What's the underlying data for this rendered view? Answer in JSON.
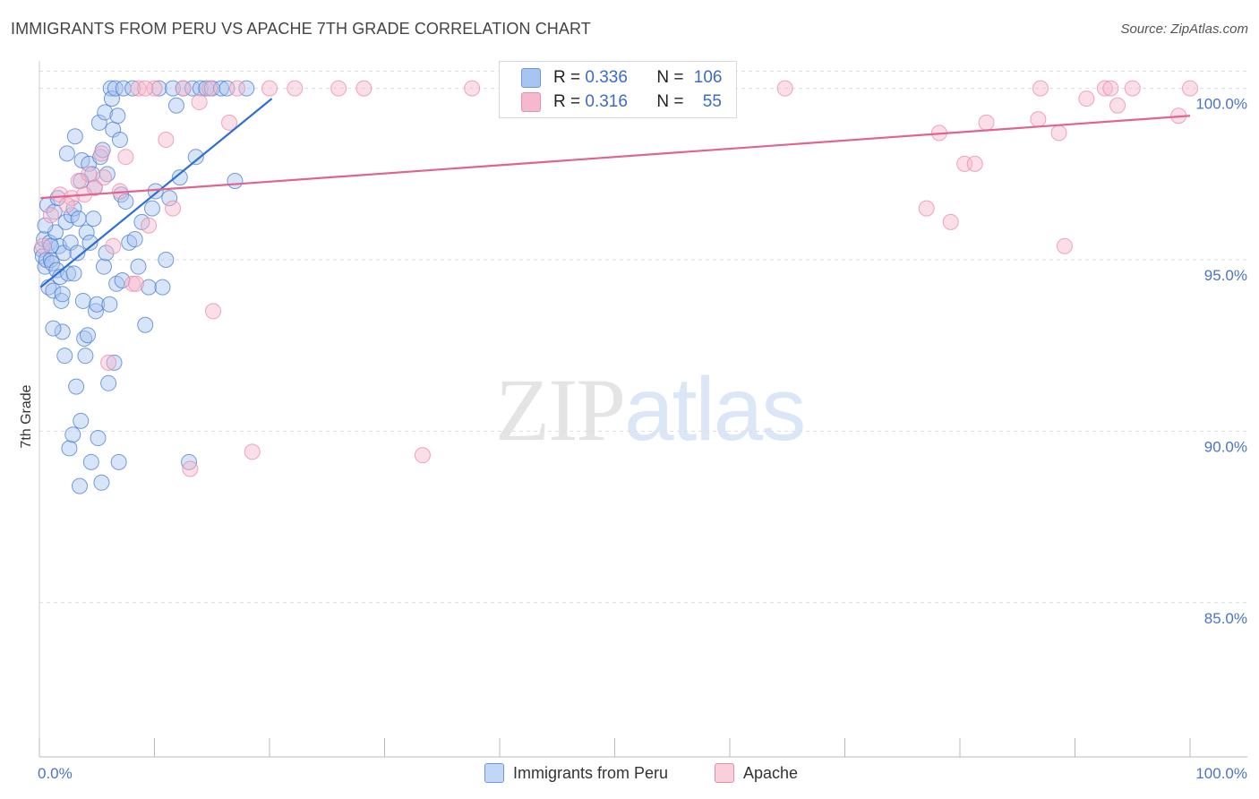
{
  "title": "IMMIGRANTS FROM PERU VS APACHE 7TH GRADE CORRELATION CHART",
  "source": "Source: ZipAtlas.com",
  "watermark": {
    "zip": "ZIP",
    "atlas": "atlas"
  },
  "colors": {
    "blue_fill": "#a8c4f0",
    "blue_stroke": "#4a7cd0",
    "blue_line": "#2f6fd0",
    "pink_fill": "#f6b8cc",
    "pink_stroke": "#e889a8",
    "pink_line": "#e0648e",
    "tick_text": "#4a74c9",
    "grid": "#dddddd"
  },
  "legend": {
    "rows": [
      {
        "r_label": "R = ",
        "r_value": "0.336",
        "n_label": "N = ",
        "n_value": "106"
      },
      {
        "r_label": "R = ",
        "r_value": "0.316",
        "n_label": "N = ",
        "n_value": "55"
      }
    ]
  },
  "chart_data": {
    "type": "scatter",
    "title": "IMMIGRANTS FROM PERU VS APACHE 7TH GRADE CORRELATION CHART",
    "xlabel": "",
    "ylabel": "7th Grade",
    "xlim": [
      0,
      100
    ],
    "ylim": [
      80.5,
      100.5
    ],
    "x_tick_labels": [
      "0.0%",
      "100.0%"
    ],
    "y_ticks": [
      85,
      90,
      95,
      100
    ],
    "y_tick_labels": [
      "85.0%",
      "90.0%",
      "95.0%",
      "100.0%"
    ],
    "grid": true,
    "series": [
      {
        "name": "Immigrants from Peru",
        "color": "#a8c4f0",
        "trend": {
          "x0": 0.1,
          "y0": 94.2,
          "x1": 20.2,
          "y1": 99.7
        },
        "points": [
          [
            0.2,
            95.3
          ],
          [
            0.3,
            95.1
          ],
          [
            0.4,
            95.6
          ],
          [
            0.5,
            94.8
          ],
          [
            0.6,
            95.0
          ],
          [
            0.7,
            96.6
          ],
          [
            0.8,
            94.2
          ],
          [
            0.9,
            95.5
          ],
          [
            1.0,
            95.0
          ],
          [
            1.1,
            94.9
          ],
          [
            1.2,
            94.1
          ],
          [
            1.3,
            96.4
          ],
          [
            1.4,
            95.8
          ],
          [
            1.5,
            94.7
          ],
          [
            1.6,
            96.8
          ],
          [
            1.7,
            95.4
          ],
          [
            1.8,
            94.5
          ],
          [
            1.9,
            93.8
          ],
          [
            2.0,
            92.9
          ],
          [
            2.1,
            95.2
          ],
          [
            2.2,
            92.2
          ],
          [
            2.3,
            96.1
          ],
          [
            2.4,
            98.1
          ],
          [
            2.5,
            94.6
          ],
          [
            2.6,
            89.5
          ],
          [
            2.7,
            95.5
          ],
          [
            2.8,
            96.3
          ],
          [
            2.9,
            89.9
          ],
          [
            3.0,
            96.5
          ],
          [
            3.1,
            98.6
          ],
          [
            3.2,
            91.3
          ],
          [
            3.3,
            95.2
          ],
          [
            3.4,
            96.2
          ],
          [
            3.5,
            88.4
          ],
          [
            3.6,
            90.3
          ],
          [
            3.7,
            97.9
          ],
          [
            3.8,
            93.8
          ],
          [
            3.9,
            92.7
          ],
          [
            4.0,
            92.2
          ],
          [
            4.1,
            95.8
          ],
          [
            4.2,
            92.8
          ],
          [
            4.3,
            97.8
          ],
          [
            4.4,
            95.5
          ],
          [
            4.5,
            89.1
          ],
          [
            4.6,
            97.5
          ],
          [
            4.7,
            96.2
          ],
          [
            4.8,
            97.1
          ],
          [
            4.9,
            93.5
          ],
          [
            5.0,
            93.7
          ],
          [
            5.1,
            89.8
          ],
          [
            5.2,
            99.0
          ],
          [
            5.3,
            98.0
          ],
          [
            5.4,
            88.5
          ],
          [
            5.5,
            98.2
          ],
          [
            5.6,
            94.8
          ],
          [
            5.7,
            99.3
          ],
          [
            5.8,
            95.2
          ],
          [
            5.9,
            97.5
          ],
          [
            6.0,
            91.4
          ],
          [
            6.1,
            93.7
          ],
          [
            6.2,
            100.0
          ],
          [
            6.3,
            99.7
          ],
          [
            6.4,
            98.8
          ],
          [
            6.5,
            92.0
          ],
          [
            6.6,
            100.0
          ],
          [
            6.7,
            94.3
          ],
          [
            6.8,
            99.2
          ],
          [
            6.9,
            89.1
          ],
          [
            7.0,
            98.5
          ],
          [
            7.1,
            96.9
          ],
          [
            7.2,
            94.4
          ],
          [
            7.3,
            100.0
          ],
          [
            7.5,
            96.7
          ],
          [
            7.8,
            95.5
          ],
          [
            8.1,
            100.0
          ],
          [
            8.3,
            95.6
          ],
          [
            8.6,
            94.8
          ],
          [
            8.9,
            96.1
          ],
          [
            9.2,
            93.1
          ],
          [
            9.5,
            94.2
          ],
          [
            9.8,
            96.5
          ],
          [
            10.1,
            97.0
          ],
          [
            10.4,
            100.0
          ],
          [
            10.7,
            94.2
          ],
          [
            11.0,
            95.0
          ],
          [
            11.3,
            96.8
          ],
          [
            11.6,
            100.0
          ],
          [
            11.9,
            99.5
          ],
          [
            12.2,
            97.4
          ],
          [
            12.5,
            100.0
          ],
          [
            13.0,
            89.1
          ],
          [
            13.3,
            100.0
          ],
          [
            13.6,
            98.0
          ],
          [
            14.0,
            100.0
          ],
          [
            14.5,
            100.0
          ],
          [
            15.0,
            100.0
          ],
          [
            15.8,
            100.0
          ],
          [
            16.3,
            100.0
          ],
          [
            17.0,
            97.3
          ],
          [
            18.0,
            100.0
          ],
          [
            1.2,
            93.0
          ],
          [
            2.0,
            94.0
          ],
          [
            3.0,
            94.6
          ],
          [
            3.6,
            97.3
          ],
          [
            1.0,
            95.4
          ],
          [
            0.5,
            96.0
          ]
        ]
      },
      {
        "name": "Apache",
        "color": "#f6b8cc",
        "trend": {
          "x0": 0.1,
          "y0": 96.8,
          "x1": 100,
          "y1": 99.2
        },
        "points": [
          [
            0.3,
            95.4
          ],
          [
            1.0,
            96.3
          ],
          [
            1.8,
            96.9
          ],
          [
            2.8,
            96.8
          ],
          [
            3.4,
            97.3
          ],
          [
            4.3,
            97.5
          ],
          [
            4.8,
            97.1
          ],
          [
            5.4,
            98.1
          ],
          [
            5.6,
            97.4
          ],
          [
            6.0,
            92.0
          ],
          [
            6.4,
            95.4
          ],
          [
            7.0,
            97.0
          ],
          [
            7.5,
            98.0
          ],
          [
            8.1,
            94.3
          ],
          [
            8.6,
            100.0
          ],
          [
            9.5,
            96.0
          ],
          [
            10.0,
            100.0
          ],
          [
            11.0,
            98.5
          ],
          [
            11.6,
            96.5
          ],
          [
            12.5,
            100.0
          ],
          [
            13.1,
            88.9
          ],
          [
            13.9,
            99.6
          ],
          [
            15.1,
            93.5
          ],
          [
            16.5,
            99.0
          ],
          [
            17.2,
            100.0
          ],
          [
            18.5,
            89.4
          ],
          [
            20.0,
            100.0
          ],
          [
            22.2,
            100.0
          ],
          [
            26.0,
            100.0
          ],
          [
            28.2,
            100.0
          ],
          [
            33.3,
            89.3
          ],
          [
            37.6,
            100.0
          ],
          [
            64.8,
            100.0
          ],
          [
            77.1,
            96.5
          ],
          [
            78.2,
            98.7
          ],
          [
            79.2,
            96.1
          ],
          [
            80.4,
            97.8
          ],
          [
            81.3,
            97.8
          ],
          [
            82.3,
            99.0
          ],
          [
            86.8,
            99.1
          ],
          [
            87.0,
            100.0
          ],
          [
            88.6,
            98.7
          ],
          [
            89.1,
            95.4
          ],
          [
            91.0,
            99.7
          ],
          [
            92.6,
            100.0
          ],
          [
            93.1,
            100.0
          ],
          [
            93.7,
            99.5
          ],
          [
            95.0,
            100.0
          ],
          [
            99.0,
            99.2
          ],
          [
            100.0,
            100.0
          ],
          [
            2.4,
            96.6
          ],
          [
            3.9,
            96.9
          ],
          [
            8.4,
            94.3
          ],
          [
            14.8,
            100.0
          ],
          [
            9.2,
            100.0
          ]
        ]
      }
    ]
  }
}
